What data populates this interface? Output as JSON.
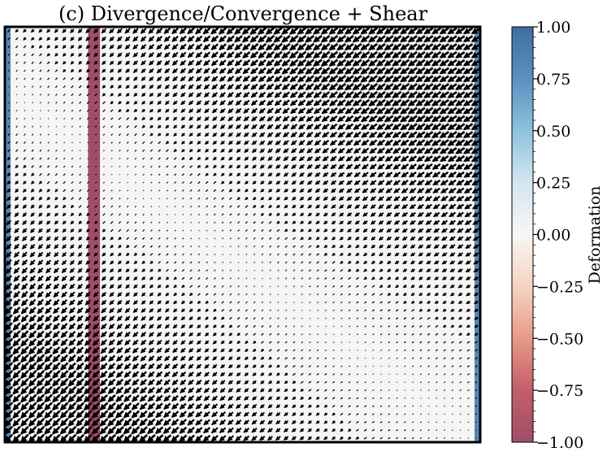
{
  "chart_data": {
    "type": "quiver",
    "title": "(c) Divergence/Convergence + Shear",
    "background_field": {
      "stripes": [
        {
          "x_frac": [
            0.0,
            0.012
          ],
          "value": 0.8
        },
        {
          "x_frac": [
            0.175,
            0.2
          ],
          "value": -1.0
        },
        {
          "x_frac": [
            0.988,
            1.0
          ],
          "value": 0.8
        }
      ],
      "base_value": 0.02
    },
    "quiver": {
      "columns": 60,
      "rows": 52,
      "arrow_color": "#000000",
      "description_direction": "down-left",
      "magnitude_pattern": "large at lower-left and upper-right, small along the diagonal and at bottom-right"
    },
    "colorbar": {
      "label": "Deformation",
      "range": [
        -1.0,
        1.0
      ],
      "ticks": [
        1.0,
        0.75,
        0.5,
        0.25,
        0.0,
        -0.25,
        -0.5,
        -0.75,
        -1.0
      ],
      "tick_labels": [
        "1.00",
        "0.75",
        "0.50",
        "0.25",
        "0.00",
        "−0.25",
        "−0.50",
        "−0.75",
        "−1.00"
      ],
      "colormap": [
        "#a14d68",
        "#c45d6b",
        "#e89a87",
        "#f6d4c2",
        "#f8f6f4",
        "#d3e6f0",
        "#8ec3de",
        "#5a90c0",
        "#3f6e9f"
      ]
    }
  }
}
